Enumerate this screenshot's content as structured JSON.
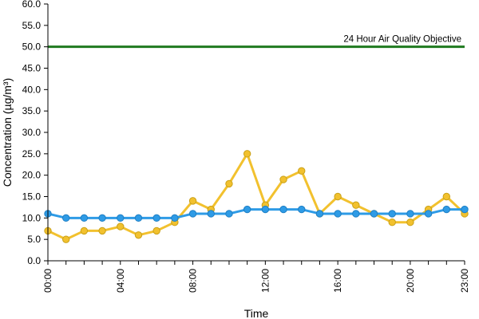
{
  "chart_data": {
    "type": "line",
    "title": "",
    "xlabel": "Time",
    "ylabel": "Concentration (µg/m³)",
    "ylim": [
      0,
      60
    ],
    "yticks": [
      "0.0",
      "5.0",
      "10.0",
      "15.0",
      "20.0",
      "25.0",
      "30.0",
      "35.0",
      "40.0",
      "45.0",
      "50.0",
      "55.0",
      "60.0"
    ],
    "x": [
      0,
      1,
      2,
      3,
      4,
      5,
      6,
      7,
      8,
      9,
      10,
      11,
      12,
      13,
      14,
      15,
      16,
      17,
      18,
      19,
      20,
      21,
      22,
      23
    ],
    "xtick_labels": [
      {
        "hour": 0,
        "label": "00:00"
      },
      {
        "hour": 4,
        "label": "04:00"
      },
      {
        "hour": 8,
        "label": "08:00"
      },
      {
        "hour": 12,
        "label": "12:00"
      },
      {
        "hour": 16,
        "label": "16:00"
      },
      {
        "hour": 20,
        "label": "20:00"
      },
      {
        "hour": 23,
        "label": "23:00"
      }
    ],
    "series": [
      {
        "color": "#f2c12e",
        "values": [
          7,
          5,
          7,
          7,
          8,
          6,
          7,
          9,
          14,
          12,
          18,
          25,
          13,
          19,
          21,
          11,
          15,
          13,
          11,
          9,
          9,
          12,
          15,
          11
        ]
      },
      {
        "color": "#2e9be6",
        "values": [
          11,
          10,
          10,
          10,
          10,
          10,
          10,
          10,
          11,
          11,
          11,
          12,
          12,
          12,
          12,
          11,
          11,
          11,
          11,
          11,
          11,
          11,
          12,
          12
        ]
      }
    ],
    "reference_line": {
      "label": "24 Hour Air Quality Objective",
      "value": 50,
      "color": "#1f7a1f"
    },
    "grid": false,
    "legend": "none"
  }
}
